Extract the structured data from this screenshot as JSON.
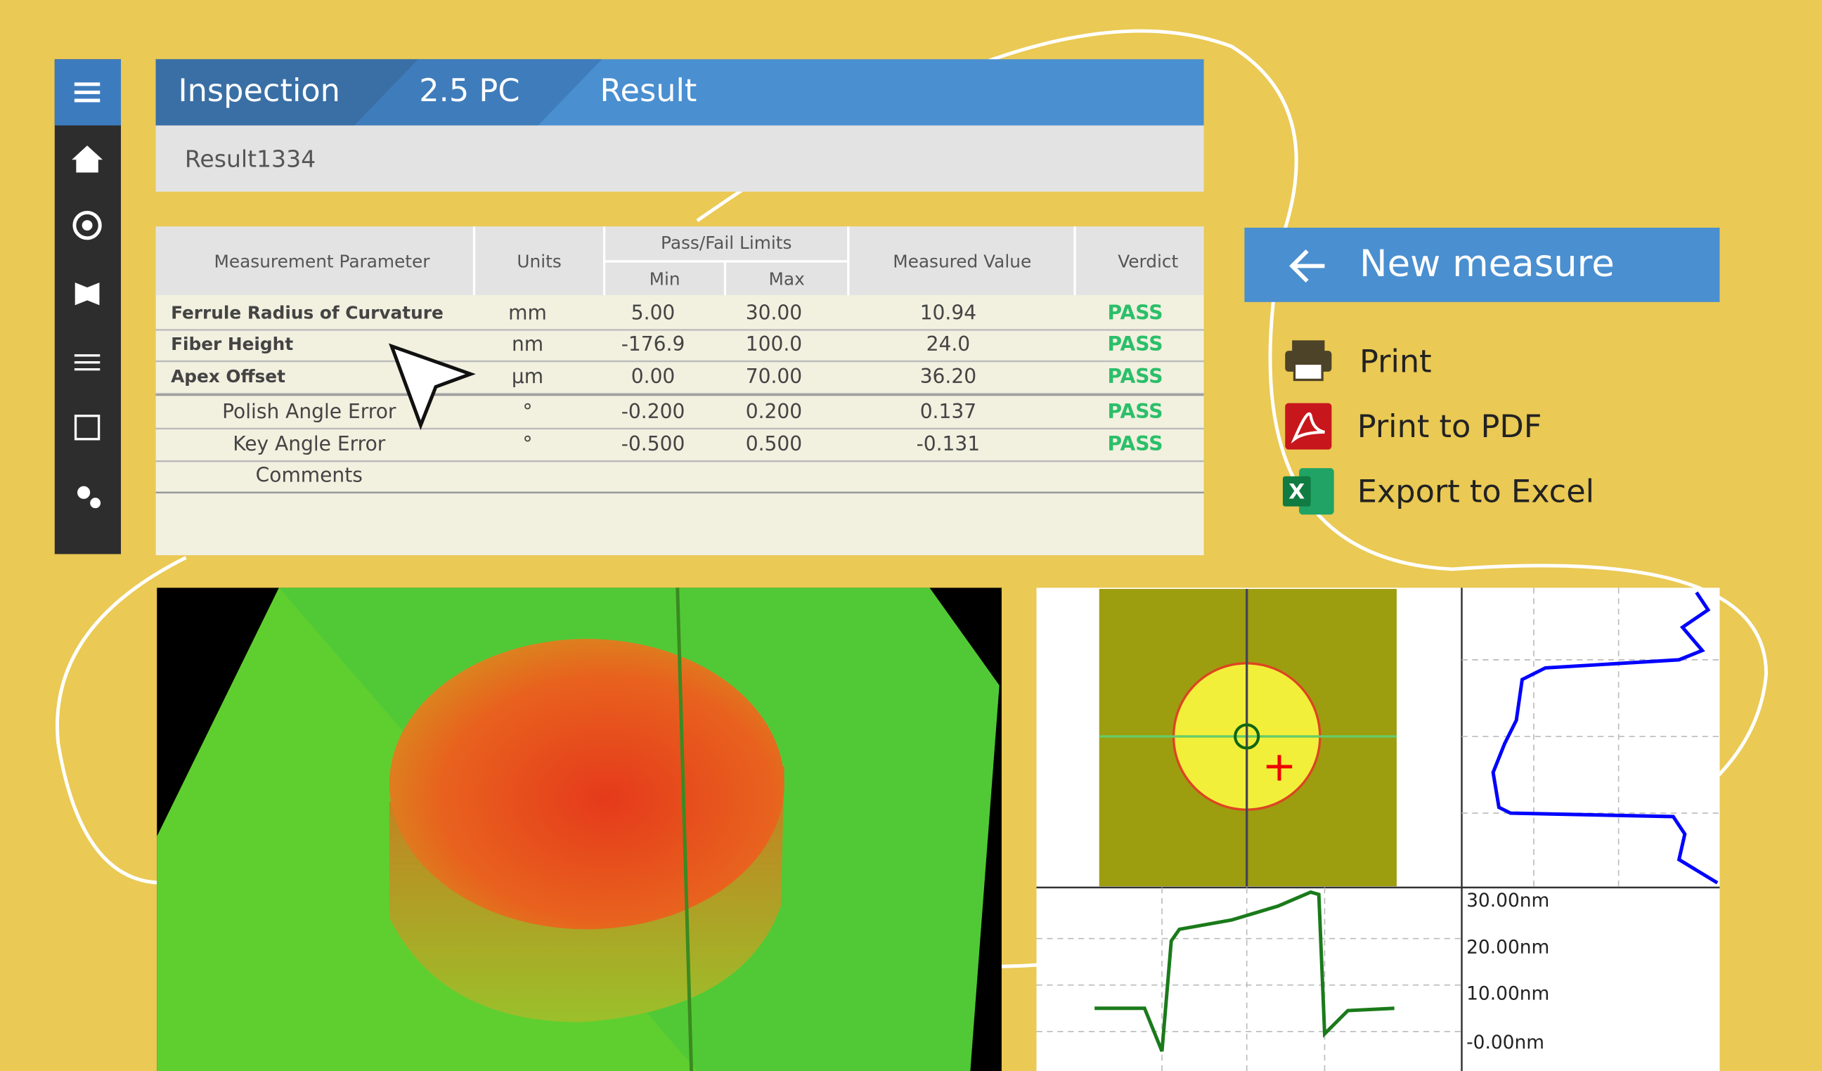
{
  "breadcrumb": [
    "Inspection",
    "2.5 PC",
    "Result"
  ],
  "result_name": "Result1334",
  "table": {
    "headers": {
      "parameter": "Measurement Parameter",
      "units": "Units",
      "limits": "Pass/Fail Limits",
      "min": "Min",
      "max": "Max",
      "measured": "Measured Value",
      "verdict": "Verdict"
    },
    "rows": [
      [
        "Ferrule Radius of Curvature",
        "mm",
        "5.00",
        "30.00",
        "10.94",
        "PASS"
      ],
      [
        "Fiber Height",
        "nm",
        "-176.9",
        "100.0",
        "24.0",
        "PASS"
      ],
      [
        "Apex Offset",
        "µm",
        "0.00",
        "70.00",
        "36.20",
        "PASS"
      ],
      [
        "Polish Angle Error",
        "°",
        "-0.200",
        "0.200",
        "0.137",
        "PASS"
      ],
      [
        "Key Angle Error",
        "°",
        "-0.500",
        "0.500",
        "-0.131",
        "PASS"
      ]
    ],
    "comments": "Comments"
  },
  "actions": {
    "title": "New measure",
    "items": [
      "Print",
      "Print to PDF",
      "Export to Excel"
    ]
  },
  "profile": {
    "labels": [
      "30.00nm",
      "20.00nm",
      "10.00nm",
      "-0.00nm"
    ]
  }
}
